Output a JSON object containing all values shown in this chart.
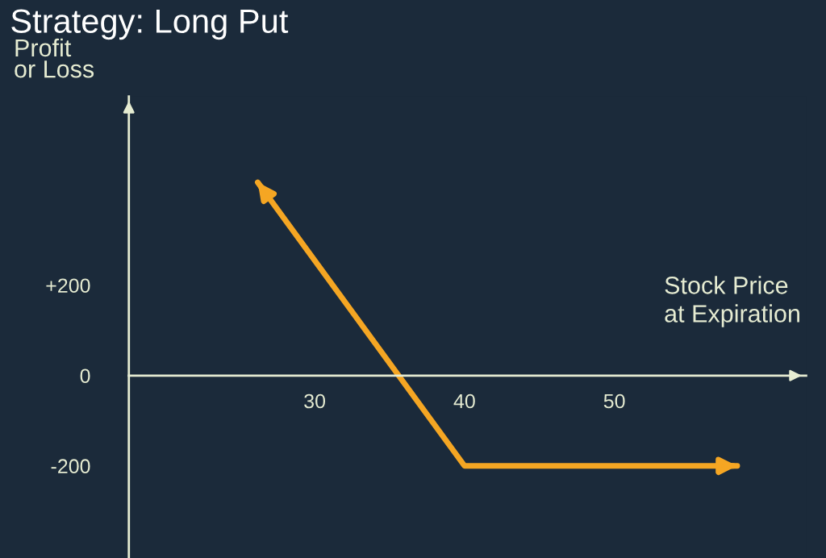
{
  "chart_data": {
    "type": "line",
    "title": "Strategy: Long Put",
    "xlabel": "Stock Price\nat Expiration",
    "ylabel": "Profit\nor Loss",
    "series": [
      {
        "color": "#f5a623",
        "x": [
          26.2,
          40,
          58.2
        ],
        "values": [
          428,
          -200,
          -200
        ]
      }
    ],
    "xlim": [
      17.6,
      62.8
    ],
    "ylim": [
      -404,
      618
    ],
    "xticks": [
      30,
      40,
      50
    ],
    "yticks": [
      {
        "value": 200,
        "label": "+200"
      },
      0,
      {
        "value": -200,
        "label": "-200"
      }
    ],
    "grid": false,
    "legend": false,
    "marker": "none",
    "line_style": "solid"
  }
}
